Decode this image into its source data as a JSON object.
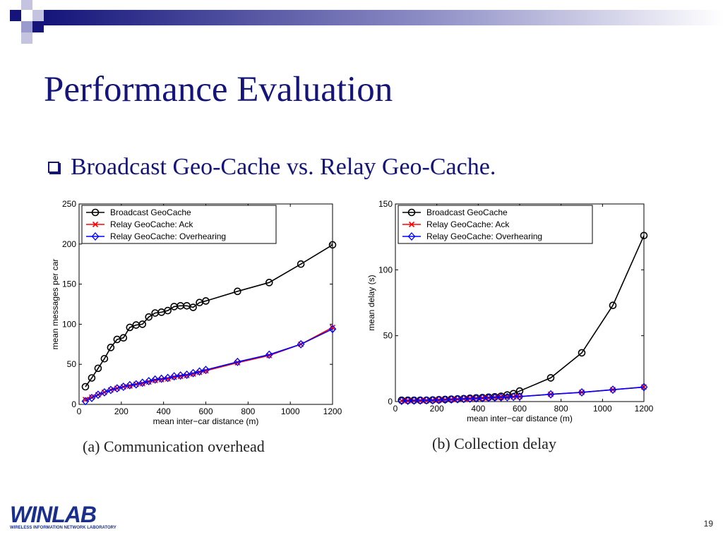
{
  "slide": {
    "title": "Performance Evaluation",
    "bullet": "Broadcast Geo-Cache vs. Relay Geo-Cache.",
    "page_number": "19",
    "logo_text": "WINLAB",
    "logo_subtext": "WIRELESS INFORMATION NETWORK LABORATORY",
    "colors": {
      "title": "#14147a",
      "deco_dark": "#14147a",
      "deco_light": "#9a9acc"
    }
  },
  "chart_data": [
    {
      "type": "line",
      "caption": "(a) Communication overhead",
      "xlabel": "mean inter−car distance (m)",
      "ylabel": "mean messages per car",
      "xlim": [
        0,
        1200
      ],
      "ylim": [
        0,
        250
      ],
      "xticks": [
        0,
        200,
        400,
        600,
        800,
        1000,
        1200
      ],
      "yticks": [
        0,
        50,
        100,
        150,
        200,
        250
      ],
      "legend_position": "top-left",
      "grid": false,
      "series": [
        {
          "name": "Broadcast GeoCache",
          "color": "#000000",
          "marker": "circle",
          "x": [
            30,
            60,
            90,
            120,
            150,
            180,
            210,
            240,
            270,
            300,
            330,
            360,
            390,
            420,
            450,
            480,
            510,
            540,
            570,
            600,
            750,
            900,
            1050,
            1200
          ],
          "y": [
            22,
            33,
            45,
            57,
            71,
            81,
            83,
            96,
            99,
            100,
            109,
            114,
            115,
            117,
            122,
            123,
            123,
            121,
            127,
            129,
            141,
            152,
            175,
            199
          ]
        },
        {
          "name": "Relay GeoCache: Ack",
          "color": "#ff0000",
          "marker": "x",
          "x": [
            30,
            60,
            90,
            120,
            150,
            180,
            210,
            240,
            270,
            300,
            330,
            360,
            390,
            420,
            450,
            480,
            510,
            540,
            570,
            600,
            750,
            900,
            1050,
            1200
          ],
          "y": [
            6,
            9,
            12,
            15,
            18,
            20,
            22,
            23,
            25,
            26,
            28,
            30,
            31,
            32,
            34,
            35,
            36,
            38,
            40,
            42,
            52,
            61,
            75,
            96
          ]
        },
        {
          "name": "Relay GeoCache: Overhearing",
          "color": "#0000ff",
          "marker": "diamond",
          "x": [
            30,
            60,
            90,
            120,
            150,
            180,
            210,
            240,
            270,
            300,
            330,
            360,
            390,
            420,
            450,
            480,
            510,
            540,
            570,
            600,
            750,
            900,
            1050,
            1200
          ],
          "y": [
            4,
            8,
            12,
            15,
            18,
            20,
            22,
            24,
            25,
            27,
            29,
            31,
            32,
            33,
            35,
            36,
            37,
            39,
            41,
            43,
            53,
            62,
            75,
            94
          ]
        }
      ]
    },
    {
      "type": "line",
      "caption": "(b) Collection delay",
      "xlabel": "mean inter−car distance (m)",
      "ylabel": "mean delay (s)",
      "xlim": [
        0,
        1200
      ],
      "ylim": [
        0,
        150
      ],
      "xticks": [
        0,
        200,
        400,
        600,
        800,
        1000,
        1200
      ],
      "yticks": [
        0,
        50,
        100,
        150
      ],
      "legend_position": "top-left",
      "grid": false,
      "series": [
        {
          "name": "Broadcast GeoCache",
          "color": "#000000",
          "marker": "circle",
          "x": [
            30,
            60,
            90,
            120,
            150,
            180,
            210,
            240,
            270,
            300,
            330,
            360,
            390,
            420,
            450,
            480,
            510,
            540,
            570,
            600,
            750,
            900,
            1050,
            1200
          ],
          "y": [
            1,
            1,
            1,
            1,
            1,
            1.2,
            1.4,
            1.6,
            1.8,
            2,
            2.2,
            2.5,
            2.8,
            3,
            3.3,
            3.6,
            4,
            5,
            6,
            8,
            18,
            37,
            73,
            126
          ]
        },
        {
          "name": "Relay GeoCache: Ack",
          "color": "#ff0000",
          "marker": "x",
          "x": [
            30,
            60,
            90,
            120,
            150,
            180,
            210,
            240,
            270,
            300,
            330,
            360,
            390,
            420,
            450,
            480,
            510,
            540,
            570,
            600,
            750,
            900,
            1050,
            1200
          ],
          "y": [
            0.5,
            0.6,
            0.7,
            0.8,
            0.9,
            1,
            1.2,
            1.4,
            1.6,
            1.8,
            2,
            2.2,
            2.4,
            2.6,
            2.8,
            3,
            3.2,
            3.4,
            3.6,
            3.8,
            5.5,
            7,
            9,
            11
          ]
        },
        {
          "name": "Relay GeoCache: Overhearing",
          "color": "#0000ff",
          "marker": "diamond",
          "x": [
            30,
            60,
            90,
            120,
            150,
            180,
            210,
            240,
            270,
            300,
            330,
            360,
            390,
            420,
            450,
            480,
            510,
            540,
            570,
            600,
            750,
            900,
            1050,
            1200
          ],
          "y": [
            0.5,
            0.6,
            0.7,
            0.8,
            0.9,
            1,
            1.2,
            1.4,
            1.6,
            1.8,
            2,
            2.2,
            2.4,
            2.6,
            2.8,
            3,
            3.2,
            3.4,
            3.6,
            3.8,
            5.5,
            7,
            9,
            11
          ]
        }
      ]
    }
  ]
}
